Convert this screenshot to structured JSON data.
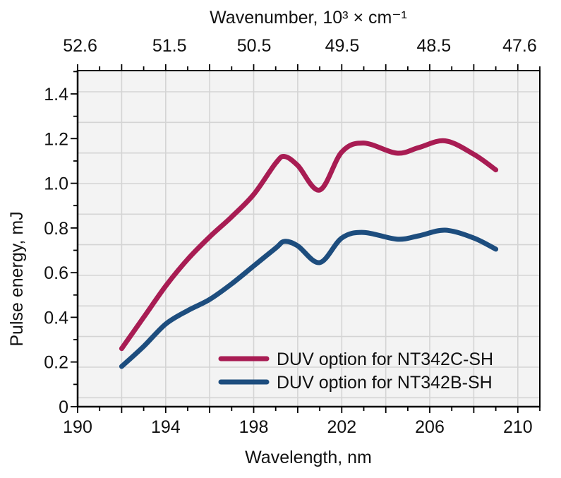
{
  "page": {
    "background": "#ffffff"
  },
  "chart_data": {
    "type": "line",
    "title": "",
    "xlabel": "Wavelength, nm",
    "x2label": "Wavenumber, 10³ × cm⁻¹",
    "ylabel": "Pulse energy, mJ",
    "xlim": [
      190,
      211
    ],
    "ylim": [
      0,
      1.5
    ],
    "grid": true,
    "legend_position": "inside lower right",
    "x_tick_step_nm": 1,
    "x_ticks_labeled": [
      190,
      194,
      198,
      202,
      206,
      210
    ],
    "y_tick_step": 0.1,
    "y_tick_labels": [
      "0",
      "0.2",
      "0.4",
      "0.6",
      "0.8",
      "1.0",
      "1.2",
      "1.4"
    ],
    "y_tick_values": [
      0,
      0.2,
      0.4,
      0.6,
      0.8,
      1.0,
      1.2,
      1.4
    ],
    "x2_tick_labels": [
      "52.6",
      "51.5",
      "50.5",
      "49.5",
      "48.5",
      "47.6"
    ],
    "colors": {
      "plot_bg": "#f3f3f3",
      "grid": "#d4d4d4",
      "axis": "#000000",
      "text": "#111111",
      "secondary_text": "#8a8a8a"
    },
    "series": [
      {
        "name": "DUV option for NT342C-SH",
        "color": "#a81c53",
        "x": [
          192,
          193,
          194,
          195,
          196,
          197,
          198,
          199,
          199.4,
          200,
          201,
          202,
          203,
          204.5,
          205.5,
          206.7,
          208,
          209
        ],
        "y": [
          0.26,
          0.4,
          0.54,
          0.66,
          0.76,
          0.85,
          0.95,
          1.09,
          1.12,
          1.08,
          0.97,
          1.14,
          1.18,
          1.135,
          1.16,
          1.19,
          1.13,
          1.06
        ]
      },
      {
        "name": "DUV option for NT342B-SH",
        "color": "#1d4d7e",
        "x": [
          192,
          193,
          194,
          195,
          196,
          197,
          198,
          199,
          199.4,
          200,
          201,
          202,
          203,
          204.5,
          205.5,
          206.7,
          208,
          209
        ],
        "y": [
          0.18,
          0.27,
          0.37,
          0.43,
          0.48,
          0.55,
          0.63,
          0.71,
          0.74,
          0.72,
          0.645,
          0.755,
          0.78,
          0.75,
          0.765,
          0.79,
          0.755,
          0.705
        ]
      }
    ]
  }
}
